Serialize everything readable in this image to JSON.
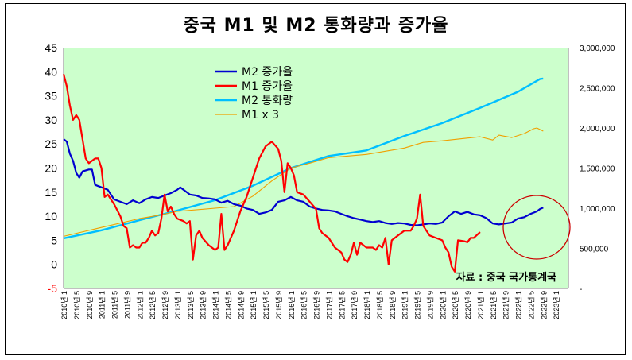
{
  "chart_data": {
    "type": "line",
    "title": "중국 M1 및 M2 통화량과 증가율",
    "source": "자료 : 중국 국가통계국",
    "left_axis": {
      "min": -5,
      "max": 45,
      "ticks": [
        "45",
        "40",
        "35",
        "30",
        "25",
        "20",
        "15",
        "10",
        "5",
        "0",
        "-5"
      ]
    },
    "right_axis": {
      "min": 0,
      "max": 3000000,
      "ticks": [
        "3,000,000",
        "2,500,000",
        "2,000,000",
        "1,500,000",
        "1,000,000",
        "500,000",
        "-"
      ]
    },
    "x_labels": [
      "2010년 1",
      "2010년 5",
      "2010년 9",
      "2011년 1",
      "2011년 5",
      "2011년 9",
      "2012년 1",
      "2012년 5",
      "2012년 9",
      "2013년 1",
      "2013년 5",
      "2013년 9",
      "2014년 1",
      "2014년 5",
      "2014년 9",
      "2015년 1",
      "2015년 5",
      "2015년 9",
      "2016년 1",
      "2016년 5",
      "2016년 9",
      "2017년 1",
      "2017년 5",
      "2017년 9",
      "2018년 1",
      "2018년 5",
      "2018년 9",
      "2019년 1",
      "2019년 5",
      "2019년 9",
      "2020년 1",
      "2020년 5",
      "2020년 9",
      "2021년 1",
      "2021년 5",
      "2021년 9",
      "2022년 1",
      "2022년 5",
      "2022년 9",
      "2023년 1"
    ],
    "legend": [
      "M2 증가율",
      "M1 증가율",
      "M2 통화량",
      "M1 x 3"
    ],
    "colors": {
      "m2_rate": "#0000d0",
      "m1_rate": "#ff0000",
      "m2_amount": "#00bfff",
      "m1x3": "#f0a000",
      "plot_bg": "#ccffcc",
      "neg_tick": "#ff0000",
      "circle": "#cc0000"
    },
    "series": [
      {
        "name": "M2 증가율",
        "axis": "left",
        "values": [
          [
            0,
            26
          ],
          [
            1,
            25.5
          ],
          [
            2,
            23
          ],
          [
            3,
            21.5
          ],
          [
            4,
            19
          ],
          [
            5,
            18
          ],
          [
            6,
            19.3
          ],
          [
            8,
            19.7
          ],
          [
            9,
            19.7
          ],
          [
            10,
            16.5
          ],
          [
            12,
            16
          ],
          [
            14,
            15.5
          ],
          [
            15,
            14.5
          ],
          [
            16,
            13.5
          ],
          [
            18,
            13
          ],
          [
            20,
            12.5
          ],
          [
            22,
            13.3
          ],
          [
            24,
            12.7
          ],
          [
            26,
            13.5
          ],
          [
            28,
            14
          ],
          [
            30,
            13.8
          ],
          [
            32,
            14.3
          ],
          [
            34,
            14.8
          ],
          [
            36,
            15.5
          ],
          [
            37,
            16
          ],
          [
            38,
            15.5
          ],
          [
            40,
            14.5
          ],
          [
            42,
            14.3
          ],
          [
            44,
            13.8
          ],
          [
            46,
            13.7
          ],
          [
            48,
            13.5
          ],
          [
            50,
            12.8
          ],
          [
            52,
            13.2
          ],
          [
            54,
            12.5
          ],
          [
            56,
            12.2
          ],
          [
            58,
            11.6
          ],
          [
            60,
            11.3
          ],
          [
            62,
            10.5
          ],
          [
            64,
            10.8
          ],
          [
            66,
            11.3
          ],
          [
            68,
            13
          ],
          [
            70,
            13.3
          ],
          [
            72,
            14
          ],
          [
            74,
            13.3
          ],
          [
            76,
            13
          ],
          [
            78,
            12
          ],
          [
            80,
            11.6
          ],
          [
            82,
            11.3
          ],
          [
            84,
            11.2
          ],
          [
            86,
            11
          ],
          [
            88,
            10.5
          ],
          [
            90,
            10
          ],
          [
            92,
            9.6
          ],
          [
            94,
            9.3
          ],
          [
            96,
            9
          ],
          [
            98,
            8.8
          ],
          [
            100,
            9
          ],
          [
            102,
            8.6
          ],
          [
            104,
            8.4
          ],
          [
            106,
            8.6
          ],
          [
            108,
            8.5
          ],
          [
            110,
            8.2
          ],
          [
            112,
            8.1
          ],
          [
            114,
            8.3
          ],
          [
            116,
            8.5
          ],
          [
            118,
            8.4
          ],
          [
            120,
            8.7
          ],
          [
            122,
            10
          ],
          [
            124,
            11
          ],
          [
            126,
            10.5
          ],
          [
            128,
            10.9
          ],
          [
            130,
            10.4
          ],
          [
            132,
            10.2
          ],
          [
            134,
            9.6
          ],
          [
            136,
            8.5
          ],
          [
            138,
            8.3
          ],
          [
            140,
            8.5
          ],
          [
            142,
            8.7
          ],
          [
            144,
            9.5
          ],
          [
            146,
            9.8
          ],
          [
            148,
            10.5
          ],
          [
            150,
            11
          ],
          [
            151,
            11.5
          ],
          [
            152,
            11.8
          ]
        ]
      },
      {
        "name": "M1 증가율",
        "axis": "left",
        "values": [
          [
            0,
            39.5
          ],
          [
            1,
            37
          ],
          [
            2,
            33
          ],
          [
            3,
            30
          ],
          [
            4,
            31
          ],
          [
            5,
            30
          ],
          [
            6,
            26
          ],
          [
            7,
            22
          ],
          [
            8,
            21
          ],
          [
            9,
            21.5
          ],
          [
            10,
            22
          ],
          [
            11,
            22
          ],
          [
            12,
            20
          ],
          [
            13,
            14
          ],
          [
            14,
            14.5
          ],
          [
            15,
            13.5
          ],
          [
            16,
            12.5
          ],
          [
            18,
            10
          ],
          [
            19,
            8
          ],
          [
            20,
            7.5
          ],
          [
            21,
            3.5
          ],
          [
            22,
            4
          ],
          [
            23,
            3.5
          ],
          [
            24,
            3.5
          ],
          [
            25,
            4.5
          ],
          [
            26,
            4.5
          ],
          [
            27,
            5.5
          ],
          [
            28,
            7
          ],
          [
            29,
            6
          ],
          [
            30,
            6.5
          ],
          [
            31,
            9.5
          ],
          [
            32,
            14.5
          ],
          [
            33,
            11
          ],
          [
            34,
            12
          ],
          [
            35,
            10.5
          ],
          [
            36,
            9.5
          ],
          [
            38,
            9
          ],
          [
            39,
            8.5
          ],
          [
            40,
            9
          ],
          [
            41,
            1
          ],
          [
            42,
            6
          ],
          [
            43,
            7
          ],
          [
            44,
            5.5
          ],
          [
            46,
            4
          ],
          [
            48,
            3
          ],
          [
            49,
            3.5
          ],
          [
            50,
            10.5
          ],
          [
            51,
            3
          ],
          [
            52,
            4
          ],
          [
            54,
            7
          ],
          [
            56,
            11
          ],
          [
            58,
            14
          ],
          [
            60,
            18
          ],
          [
            62,
            22
          ],
          [
            64,
            24.5
          ],
          [
            66,
            25.5
          ],
          [
            68,
            24
          ],
          [
            69,
            21.5
          ],
          [
            70,
            15
          ],
          [
            71,
            21
          ],
          [
            72,
            20
          ],
          [
            73,
            18.5
          ],
          [
            74,
            15
          ],
          [
            76,
            14.5
          ],
          [
            78,
            13
          ],
          [
            80,
            11.5
          ],
          [
            81,
            7.5
          ],
          [
            82,
            6.5
          ],
          [
            84,
            5.5
          ],
          [
            85,
            4.5
          ],
          [
            86,
            3.5
          ],
          [
            88,
            2.5
          ],
          [
            89,
            1
          ],
          [
            90,
            0.5
          ],
          [
            91,
            2
          ],
          [
            92,
            4.5
          ],
          [
            93,
            2
          ],
          [
            94,
            4.5
          ],
          [
            96,
            3.5
          ],
          [
            98,
            3.5
          ],
          [
            99,
            3
          ],
          [
            100,
            4
          ],
          [
            101,
            3.5
          ],
          [
            102,
            5.5
          ],
          [
            103,
            0
          ],
          [
            104,
            5
          ],
          [
            106,
            6
          ],
          [
            108,
            7
          ],
          [
            110,
            7
          ],
          [
            111,
            8
          ],
          [
            112,
            9.5
          ],
          [
            113,
            14.5
          ],
          [
            114,
            8
          ],
          [
            115,
            7
          ],
          [
            116,
            6
          ],
          [
            118,
            5.5
          ],
          [
            120,
            5
          ],
          [
            121,
            3.5
          ],
          [
            122,
            2.5
          ],
          [
            123,
            -0.5
          ],
          [
            124,
            -1.5
          ],
          [
            125,
            5
          ],
          [
            127,
            4.8
          ],
          [
            128,
            4.6
          ],
          [
            129,
            5.5
          ],
          [
            130,
            5.5
          ],
          [
            132,
            6.7
          ]
        ]
      },
      {
        "name": "M2 통화량",
        "axis": "right",
        "values": [
          [
            0,
            625000
          ],
          [
            12,
            725000
          ],
          [
            24,
            850000
          ],
          [
            36,
            970000
          ],
          [
            48,
            1100000
          ],
          [
            60,
            1280000
          ],
          [
            72,
            1500000
          ],
          [
            84,
            1650000
          ],
          [
            96,
            1720000
          ],
          [
            108,
            1900000
          ],
          [
            120,
            2060000
          ],
          [
            132,
            2250000
          ],
          [
            144,
            2450000
          ],
          [
            151,
            2610000
          ],
          [
            152,
            2615000
          ]
        ]
      },
      {
        "name": "M1 x 3",
        "axis": "right",
        "values": [
          [
            0,
            650000
          ],
          [
            12,
            760000
          ],
          [
            24,
            870000
          ],
          [
            30,
            910000
          ],
          [
            36,
            960000
          ],
          [
            48,
            1000000
          ],
          [
            54,
            1020000
          ],
          [
            60,
            1150000
          ],
          [
            66,
            1340000
          ],
          [
            72,
            1500000
          ],
          [
            78,
            1560000
          ],
          [
            84,
            1630000
          ],
          [
            96,
            1670000
          ],
          [
            108,
            1750000
          ],
          [
            114,
            1820000
          ],
          [
            120,
            1840000
          ],
          [
            132,
            1890000
          ],
          [
            136,
            1850000
          ],
          [
            138,
            1910000
          ],
          [
            142,
            1880000
          ],
          [
            146,
            1930000
          ],
          [
            149,
            1990000
          ],
          [
            150,
            2000000
          ],
          [
            152,
            1960000
          ]
        ]
      }
    ]
  }
}
